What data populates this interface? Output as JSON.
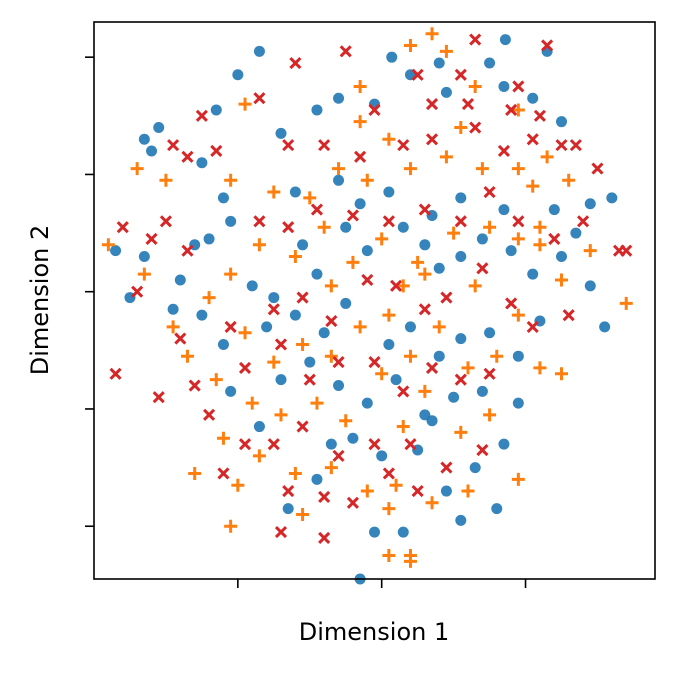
{
  "chart_data": {
    "type": "scatter",
    "title": "",
    "xlabel": "Dimension 1",
    "ylabel": "Dimension 2",
    "xlim": [
      -2.0,
      1.9
    ],
    "ylim": [
      -2.45,
      2.3
    ],
    "x_ticks": [
      -1,
      0,
      1
    ],
    "y_ticks": [
      -2,
      -1,
      0,
      1,
      2
    ],
    "tick_labels_shown": false,
    "grid": false,
    "legend": "none",
    "series": [
      {
        "marker": "circle",
        "color": "#1f77b4",
        "points": [
          [
            -0.85,
            2.05
          ],
          [
            0.07,
            2.0
          ],
          [
            0.86,
            2.15
          ],
          [
            1.15,
            2.05
          ],
          [
            -1.0,
            1.85
          ],
          [
            0.75,
            1.95
          ],
          [
            -0.3,
            1.65
          ],
          [
            0.4,
            1.95
          ],
          [
            -1.15,
            1.55
          ],
          [
            -1.55,
            1.4
          ],
          [
            -1.65,
            1.3
          ],
          [
            -1.6,
            1.2
          ],
          [
            -1.25,
            1.1
          ],
          [
            -0.7,
            1.35
          ],
          [
            -0.45,
            1.55
          ],
          [
            -0.05,
            1.6
          ],
          [
            0.2,
            1.85
          ],
          [
            0.45,
            1.7
          ],
          [
            0.85,
            1.75
          ],
          [
            1.05,
            1.65
          ],
          [
            1.25,
            1.45
          ],
          [
            -1.1,
            0.8
          ],
          [
            -0.6,
            0.85
          ],
          [
            -0.3,
            0.95
          ],
          [
            -0.15,
            0.75
          ],
          [
            0.05,
            0.85
          ],
          [
            0.35,
            0.65
          ],
          [
            0.55,
            0.8
          ],
          [
            0.85,
            0.7
          ],
          [
            1.2,
            0.7
          ],
          [
            1.45,
            0.75
          ],
          [
            1.6,
            0.8
          ],
          [
            -1.85,
            0.35
          ],
          [
            -1.65,
            0.3
          ],
          [
            -1.4,
            0.1
          ],
          [
            -1.3,
            0.4
          ],
          [
            -1.2,
            0.45
          ],
          [
            -1.05,
            0.6
          ],
          [
            -0.9,
            0.05
          ],
          [
            -0.75,
            -0.05
          ],
          [
            -0.55,
            0.4
          ],
          [
            -0.45,
            0.15
          ],
          [
            -0.25,
            0.55
          ],
          [
            -0.1,
            0.35
          ],
          [
            0.15,
            0.55
          ],
          [
            0.3,
            0.4
          ],
          [
            0.4,
            0.2
          ],
          [
            0.55,
            0.3
          ],
          [
            0.7,
            0.45
          ],
          [
            0.9,
            0.35
          ],
          [
            1.05,
            0.15
          ],
          [
            1.25,
            0.3
          ],
          [
            1.45,
            0.05
          ],
          [
            1.55,
            -0.3
          ],
          [
            -1.75,
            -0.05
          ],
          [
            -1.45,
            -0.15
          ],
          [
            -1.25,
            -0.2
          ],
          [
            -1.1,
            -0.45
          ],
          [
            -0.8,
            -0.3
          ],
          [
            -0.6,
            -0.2
          ],
          [
            -0.4,
            -0.35
          ],
          [
            -0.25,
            -0.1
          ],
          [
            0.05,
            -0.45
          ],
          [
            0.2,
            -0.3
          ],
          [
            0.4,
            -0.55
          ],
          [
            0.55,
            -0.4
          ],
          [
            0.75,
            -0.35
          ],
          [
            0.95,
            -0.55
          ],
          [
            1.1,
            -0.25
          ],
          [
            -1.05,
            -0.85
          ],
          [
            -0.85,
            -1.15
          ],
          [
            -0.7,
            -0.75
          ],
          [
            -0.5,
            -0.6
          ],
          [
            -0.3,
            -0.8
          ],
          [
            -0.1,
            -0.95
          ],
          [
            0.1,
            -0.75
          ],
          [
            0.3,
            -1.05
          ],
          [
            0.5,
            -0.9
          ],
          [
            0.7,
            -0.85
          ],
          [
            0.85,
            -1.3
          ],
          [
            -0.45,
            -1.6
          ],
          [
            -0.2,
            -1.25
          ],
          [
            0.0,
            -1.4
          ],
          [
            0.25,
            -1.35
          ],
          [
            0.45,
            -1.7
          ],
          [
            0.65,
            -1.5
          ],
          [
            0.8,
            -1.85
          ],
          [
            -0.65,
            -1.85
          ],
          [
            -0.05,
            -2.05
          ],
          [
            0.15,
            -2.05
          ],
          [
            -0.15,
            -2.45
          ],
          [
            0.55,
            -1.95
          ],
          [
            0.35,
            -1.1
          ],
          [
            -0.35,
            -1.3
          ],
          [
            0.95,
            -0.95
          ],
          [
            1.35,
            0.5
          ]
        ]
      },
      {
        "marker": "plus",
        "color": "#ff7f0e",
        "points": [
          [
            0.35,
            2.2
          ],
          [
            0.2,
            2.1
          ],
          [
            0.45,
            2.05
          ],
          [
            -0.95,
            1.6
          ],
          [
            0.95,
            1.55
          ],
          [
            0.55,
            1.4
          ],
          [
            0.05,
            1.3
          ],
          [
            -0.15,
            1.45
          ],
          [
            -1.7,
            1.05
          ],
          [
            -1.5,
            0.95
          ],
          [
            -1.05,
            0.95
          ],
          [
            -0.75,
            0.85
          ],
          [
            -0.5,
            0.8
          ],
          [
            -0.3,
            1.05
          ],
          [
            -0.1,
            0.95
          ],
          [
            0.2,
            1.05
          ],
          [
            0.45,
            1.15
          ],
          [
            0.7,
            1.05
          ],
          [
            0.95,
            1.05
          ],
          [
            1.15,
            1.15
          ],
          [
            1.3,
            0.95
          ],
          [
            -1.9,
            0.4
          ],
          [
            -1.65,
            0.15
          ],
          [
            -1.45,
            -0.3
          ],
          [
            -1.2,
            -0.05
          ],
          [
            -1.05,
            0.15
          ],
          [
            -0.85,
            0.4
          ],
          [
            -0.6,
            0.3
          ],
          [
            -0.4,
            0.55
          ],
          [
            -0.2,
            0.25
          ],
          [
            0.0,
            0.45
          ],
          [
            0.25,
            0.25
          ],
          [
            0.5,
            0.5
          ],
          [
            0.75,
            0.55
          ],
          [
            0.95,
            0.45
          ],
          [
            1.1,
            0.4
          ],
          [
            1.25,
            0.1
          ],
          [
            1.45,
            0.35
          ],
          [
            1.7,
            -0.1
          ],
          [
            -1.35,
            -0.55
          ],
          [
            -1.15,
            -0.75
          ],
          [
            -0.95,
            -0.35
          ],
          [
            -0.75,
            -0.6
          ],
          [
            -0.55,
            -0.45
          ],
          [
            -0.35,
            -0.55
          ],
          [
            -0.15,
            -0.3
          ],
          [
            0.05,
            -0.2
          ],
          [
            0.2,
            -0.55
          ],
          [
            0.4,
            -0.3
          ],
          [
            0.6,
            -0.65
          ],
          [
            0.8,
            -0.55
          ],
          [
            0.95,
            -0.2
          ],
          [
            1.1,
            -0.65
          ],
          [
            1.25,
            -0.7
          ],
          [
            -0.9,
            -0.95
          ],
          [
            -0.7,
            -1.05
          ],
          [
            -0.45,
            -0.95
          ],
          [
            -0.25,
            -1.1
          ],
          [
            0.0,
            -0.7
          ],
          [
            0.15,
            -1.15
          ],
          [
            0.3,
            -0.85
          ],
          [
            0.55,
            -1.2
          ],
          [
            0.75,
            -1.05
          ],
          [
            0.95,
            -1.6
          ],
          [
            -1.1,
            -1.25
          ],
          [
            -0.85,
            -1.4
          ],
          [
            -0.6,
            -1.55
          ],
          [
            -0.35,
            -1.5
          ],
          [
            -0.1,
            -1.7
          ],
          [
            0.1,
            -1.65
          ],
          [
            0.35,
            -1.8
          ],
          [
            0.6,
            -1.7
          ],
          [
            -1.0,
            -1.65
          ],
          [
            -0.55,
            -1.9
          ],
          [
            0.05,
            -1.85
          ],
          [
            -1.05,
            -2.0
          ],
          [
            0.05,
            -2.25
          ],
          [
            0.2,
            -2.25
          ],
          [
            0.2,
            -2.3
          ],
          [
            -0.15,
            1.75
          ],
          [
            0.65,
            1.75
          ],
          [
            1.1,
            0.55
          ],
          [
            1.05,
            0.9
          ],
          [
            -0.35,
            0.05
          ],
          [
            0.15,
            0.05
          ],
          [
            0.3,
            0.15
          ],
          [
            0.65,
            0.05
          ],
          [
            -1.3,
            -1.55
          ]
        ]
      },
      {
        "marker": "x",
        "color": "#d62728",
        "points": [
          [
            -0.25,
            2.05
          ],
          [
            0.65,
            2.15
          ],
          [
            1.15,
            2.1
          ],
          [
            0.25,
            1.85
          ],
          [
            0.55,
            1.85
          ],
          [
            -0.85,
            1.65
          ],
          [
            -0.05,
            1.55
          ],
          [
            0.35,
            1.6
          ],
          [
            0.6,
            1.6
          ],
          [
            0.9,
            1.55
          ],
          [
            1.1,
            1.5
          ],
          [
            1.25,
            1.25
          ],
          [
            -1.45,
            1.25
          ],
          [
            -1.35,
            1.15
          ],
          [
            -1.15,
            1.2
          ],
          [
            -0.65,
            1.25
          ],
          [
            -0.4,
            1.25
          ],
          [
            -0.15,
            1.15
          ],
          [
            0.15,
            1.25
          ],
          [
            0.35,
            1.3
          ],
          [
            0.65,
            1.4
          ],
          [
            0.85,
            1.2
          ],
          [
            1.05,
            1.3
          ],
          [
            -1.8,
            0.55
          ],
          [
            -1.6,
            0.45
          ],
          [
            -1.5,
            0.6
          ],
          [
            -1.35,
            0.35
          ],
          [
            -0.85,
            0.6
          ],
          [
            -0.65,
            0.55
          ],
          [
            -0.45,
            0.7
          ],
          [
            -0.2,
            0.65
          ],
          [
            0.05,
            0.6
          ],
          [
            0.3,
            0.7
          ],
          [
            0.55,
            0.6
          ],
          [
            0.75,
            0.85
          ],
          [
            0.95,
            0.6
          ],
          [
            1.2,
            0.45
          ],
          [
            1.4,
            0.6
          ],
          [
            1.65,
            0.35
          ],
          [
            -1.7,
            0.0
          ],
          [
            -1.4,
            -0.4
          ],
          [
            -1.05,
            -0.3
          ],
          [
            -0.75,
            -0.15
          ],
          [
            -0.55,
            -0.05
          ],
          [
            -0.35,
            -0.25
          ],
          [
            -0.1,
            0.1
          ],
          [
            0.1,
            0.05
          ],
          [
            0.3,
            -0.15
          ],
          [
            0.45,
            -0.05
          ],
          [
            0.7,
            0.2
          ],
          [
            0.9,
            -0.1
          ],
          [
            1.05,
            -0.3
          ],
          [
            1.3,
            -0.2
          ],
          [
            -1.55,
            -0.9
          ],
          [
            -1.3,
            -0.8
          ],
          [
            -1.2,
            -1.05
          ],
          [
            -0.95,
            -0.65
          ],
          [
            -0.7,
            -0.45
          ],
          [
            -0.5,
            -0.75
          ],
          [
            -0.3,
            -0.6
          ],
          [
            -0.05,
            -0.6
          ],
          [
            0.15,
            -0.85
          ],
          [
            0.35,
            -0.65
          ],
          [
            0.55,
            -0.75
          ],
          [
            0.75,
            -0.7
          ],
          [
            -0.95,
            -1.3
          ],
          [
            -0.75,
            -1.3
          ],
          [
            -0.55,
            -1.15
          ],
          [
            -0.3,
            -1.4
          ],
          [
            -0.05,
            -1.3
          ],
          [
            0.2,
            -1.3
          ],
          [
            0.45,
            -1.5
          ],
          [
            0.7,
            -1.35
          ],
          [
            -0.65,
            -1.7
          ],
          [
            -0.4,
            -1.75
          ],
          [
            -0.2,
            -1.8
          ],
          [
            0.05,
            -1.55
          ],
          [
            0.25,
            -1.7
          ],
          [
            -0.7,
            -2.05
          ],
          [
            -0.4,
            -2.1
          ],
          [
            -0.6,
            1.95
          ],
          [
            -1.25,
            1.5
          ],
          [
            1.35,
            1.25
          ],
          [
            1.5,
            1.05
          ],
          [
            1.7,
            0.35
          ],
          [
            0.95,
            1.75
          ],
          [
            -1.85,
            -0.7
          ],
          [
            -1.1,
            -1.55
          ]
        ]
      }
    ]
  }
}
